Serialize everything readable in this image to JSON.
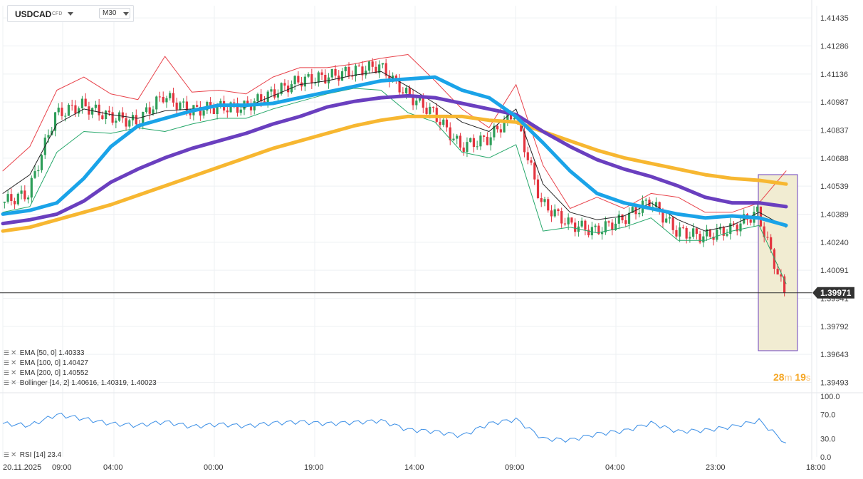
{
  "toolbar": {
    "symbol": "USDCAD",
    "symbol_type": "CFD",
    "timeframe": "M30"
  },
  "colors": {
    "bull": "#2e9e59",
    "bear": "#e3343f",
    "ema50": "#1aa3e8",
    "ema100": "#6a3fbf",
    "ema200": "#f7b731",
    "boll_upper": "#e8434b",
    "boll_lower": "#27a86b",
    "boll_mid": "#222222",
    "rsi": "#3a8ee6",
    "highlight": "#6a3fbf"
  },
  "legend": [
    {
      "name": "EMA",
      "params": "[50, 0]",
      "value": "1.40333"
    },
    {
      "name": "EMA",
      "params": "[100, 0]",
      "value": "1.40427"
    },
    {
      "name": "EMA",
      "params": "[200, 0]",
      "value": "1.40552"
    },
    {
      "name": "Bollinger",
      "params": "[14, 2]",
      "value": "1.40616,  1.40319,  1.40023"
    }
  ],
  "rsi_legend": {
    "name": "RSI",
    "params": "[14]",
    "value": "23.4"
  },
  "countdown": {
    "minutes": "28",
    "m_unit": "m",
    "seconds": "19",
    "s_unit": "s"
  },
  "chart_data": [
    {
      "type": "candlestick",
      "title": "USDCAD",
      "price_axis_ticks": [
        "1.41435",
        "1.41286",
        "1.41136",
        "1.40987",
        "1.40837",
        "1.40688",
        "1.40539",
        "1.40389",
        "1.40240",
        "1.40091",
        "1.39941",
        "1.39792",
        "1.39643",
        "1.39493"
      ],
      "time_axis_ticks": [
        "20.11.2025",
        "09:00",
        "04:00",
        "00:00",
        "19:00",
        "14:00",
        "09:00",
        "04:00",
        "23:00",
        "18:00"
      ],
      "ylim": [
        1.3945,
        1.415
      ],
      "current_price": "1.39971",
      "series": [
        {
          "name": "EMA [50, 0]",
          "values": [
            1.4039,
            1.4041,
            1.4045,
            1.4058,
            1.4075,
            1.4086,
            1.409,
            1.4094,
            1.4097,
            1.4097,
            1.4098,
            1.4101,
            1.4104,
            1.4107,
            1.411,
            1.4111,
            1.4112,
            1.4105,
            1.4101,
            1.4091,
            1.4077,
            1.4062,
            1.405,
            1.4045,
            1.4042,
            1.4039,
            1.4037,
            1.4038,
            1.4037,
            1.4033
          ]
        },
        {
          "name": "EMA [100, 0]",
          "values": [
            1.4034,
            1.4036,
            1.4039,
            1.4046,
            1.4056,
            1.4063,
            1.4069,
            1.4074,
            1.4078,
            1.4082,
            1.4087,
            1.4091,
            1.4096,
            1.4099,
            1.4101,
            1.4102,
            1.4101,
            1.4098,
            1.4095,
            1.4092,
            1.4083,
            1.4075,
            1.4068,
            1.4063,
            1.4059,
            1.4054,
            1.4048,
            1.4045,
            1.4045,
            1.4043
          ]
        },
        {
          "name": "EMA [200, 0]",
          "values": [
            1.403,
            1.4032,
            1.4036,
            1.404,
            1.4044,
            1.4049,
            1.4054,
            1.4059,
            1.4064,
            1.4069,
            1.4074,
            1.4078,
            1.4082,
            1.4086,
            1.4089,
            1.4091,
            1.4091,
            1.4091,
            1.4089,
            1.4088,
            1.4083,
            1.4078,
            1.4073,
            1.4069,
            1.4066,
            1.4063,
            1.406,
            1.4058,
            1.4057,
            1.4055
          ]
        },
        {
          "name": "Bollinger upper",
          "values": [
            1.4062,
            1.4075,
            1.4105,
            1.4112,
            1.4103,
            1.41,
            1.4123,
            1.4104,
            1.4105,
            1.4103,
            1.4112,
            1.4117,
            1.4117,
            1.4119,
            1.4122,
            1.4124,
            1.411,
            1.4095,
            1.4085,
            1.4108,
            1.4065,
            1.4042,
            1.4048,
            1.4042,
            1.405,
            1.4048,
            1.404,
            1.404,
            1.4045,
            1.4062
          ]
        },
        {
          "name": "Bollinger middle",
          "values": [
            1.405,
            1.406,
            1.4087,
            1.4095,
            1.4092,
            1.409,
            1.4094,
            1.4095,
            1.4097,
            1.4096,
            1.4102,
            1.4108,
            1.411,
            1.4113,
            1.4115,
            1.4107,
            1.4098,
            1.4088,
            1.4083,
            1.4095,
            1.4055,
            1.404,
            1.4036,
            1.4038,
            1.4045,
            1.4036,
            1.403,
            1.4033,
            1.404,
            1.4032
          ]
        },
        {
          "name": "Bollinger lower",
          "values": [
            1.404,
            1.4043,
            1.4072,
            1.4083,
            1.4082,
            1.4085,
            1.4083,
            1.4087,
            1.409,
            1.409,
            1.4095,
            1.4099,
            1.4103,
            1.4106,
            1.4105,
            1.4093,
            1.4088,
            1.4072,
            1.4069,
            1.4076,
            1.403,
            1.4032,
            1.4029,
            1.4032,
            1.4037,
            1.4025,
            1.4025,
            1.403,
            1.4033,
            1.4002
          ]
        },
        {
          "name": "Close",
          "values": [
            1.4045,
            1.405,
            1.4092,
            1.4097,
            1.4091,
            1.4088,
            1.4102,
            1.4094,
            1.4096,
            1.4096,
            1.4103,
            1.411,
            1.4112,
            1.4115,
            1.4118,
            1.4103,
            1.4093,
            1.4075,
            1.4079,
            1.4093,
            1.4045,
            1.4034,
            1.403,
            1.4036,
            1.4046,
            1.403,
            1.4027,
            1.4031,
            1.404,
            1.3997
          ]
        }
      ]
    },
    {
      "type": "line",
      "title": "RSI [14]",
      "y_ticks": [
        "100.0",
        "70.0",
        "30.0",
        "0.0"
      ],
      "ylim": [
        0,
        100
      ],
      "series": [
        {
          "name": "RSI [14]",
          "values": [
            55,
            52,
            70,
            63,
            55,
            52,
            58,
            50,
            54,
            51,
            56,
            58,
            55,
            57,
            60,
            45,
            42,
            35,
            55,
            62,
            30,
            28,
            38,
            43,
            56,
            42,
            44,
            50,
            60,
            23
          ]
        }
      ]
    }
  ]
}
